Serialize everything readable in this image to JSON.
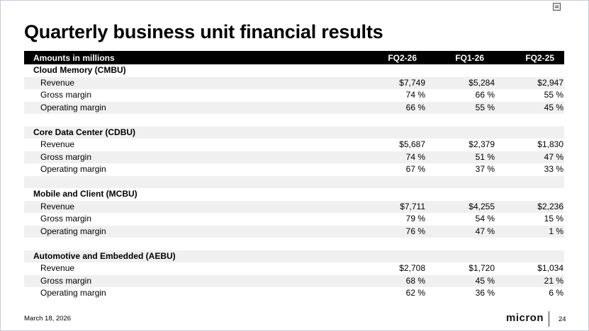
{
  "title": "Quarterly business unit financial results",
  "table": {
    "header": {
      "label": "Amounts in millions",
      "columns": [
        "FQ2-26",
        "FQ1-26",
        "FQ2-25"
      ]
    },
    "rows": [
      {
        "type": "section",
        "label": "Cloud Memory (CMBU)",
        "values": [
          "",
          "",
          ""
        ]
      },
      {
        "type": "metric",
        "label": "Revenue",
        "values": [
          "$7,749",
          "$5,284",
          "$2,947"
        ]
      },
      {
        "type": "metric",
        "label": "Gross margin",
        "values": [
          "74 %",
          "66 %",
          "55 %"
        ]
      },
      {
        "type": "metric",
        "label": "Operating margin",
        "values": [
          "66 %",
          "55 %",
          "45 %"
        ]
      },
      {
        "type": "blank",
        "label": "",
        "values": [
          "",
          "",
          ""
        ]
      },
      {
        "type": "section",
        "label": "Core Data Center (CDBU)",
        "values": [
          "",
          "",
          ""
        ]
      },
      {
        "type": "metric",
        "label": "Revenue",
        "values": [
          "$5,687",
          "$2,379",
          "$1,830"
        ]
      },
      {
        "type": "metric",
        "label": "Gross margin",
        "values": [
          "74 %",
          "51 %",
          "47 %"
        ]
      },
      {
        "type": "metric",
        "label": "Operating margin",
        "values": [
          "67 %",
          "37 %",
          "33 %"
        ]
      },
      {
        "type": "blank",
        "label": "",
        "values": [
          "",
          "",
          ""
        ]
      },
      {
        "type": "section",
        "label": "Mobile and Client (MCBU)",
        "values": [
          "",
          "",
          ""
        ]
      },
      {
        "type": "metric",
        "label": "Revenue",
        "values": [
          "$7,711",
          "$4,255",
          "$2,236"
        ]
      },
      {
        "type": "metric",
        "label": "Gross margin",
        "values": [
          "79 %",
          "54 %",
          "15 %"
        ]
      },
      {
        "type": "metric",
        "label": "Operating margin",
        "values": [
          "76 %",
          "47 %",
          "1 %"
        ]
      },
      {
        "type": "blank",
        "label": "",
        "values": [
          "",
          "",
          ""
        ]
      },
      {
        "type": "section",
        "label": "Automotive and Embedded (AEBU)",
        "values": [
          "",
          "",
          ""
        ]
      },
      {
        "type": "metric",
        "label": "Revenue",
        "values": [
          "$2,708",
          "$1,720",
          "$1,034"
        ]
      },
      {
        "type": "metric",
        "label": "Gross margin",
        "values": [
          "68 %",
          "45 %",
          "21 %"
        ]
      },
      {
        "type": "metric",
        "label": "Operating margin",
        "values": [
          "62 %",
          "36 %",
          "6 %"
        ]
      }
    ]
  },
  "footer": {
    "date": "March 18, 2026",
    "logo": "micron",
    "page": "24"
  },
  "icons": {
    "corner": "slide-thumbnail-icon"
  }
}
